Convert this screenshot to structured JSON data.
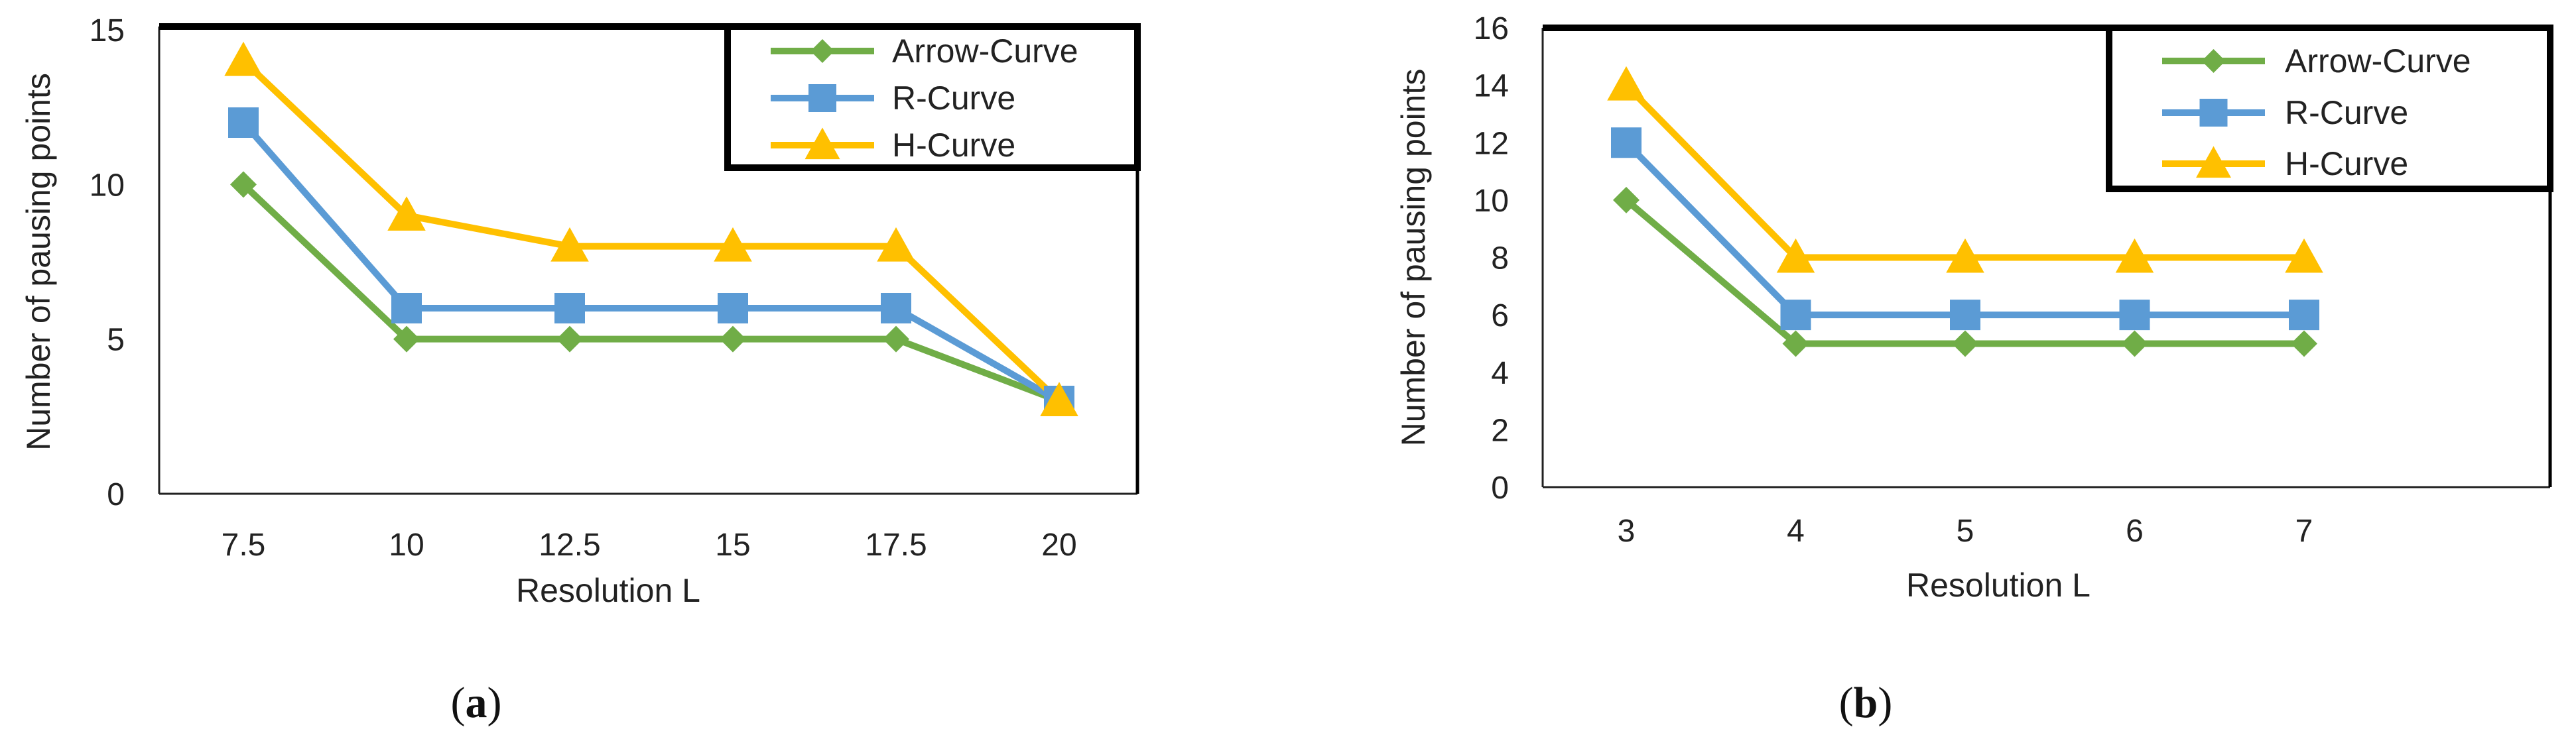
{
  "chart_data": [
    {
      "type": "line",
      "panel_label": "a",
      "xlabel": "Resolution L",
      "ylabel": "Number of pausing points",
      "categories": [
        "7.5",
        "10",
        "12.5",
        "15",
        "17.5",
        "20"
      ],
      "ylim": [
        0,
        15
      ],
      "yticks": [
        "0",
        "5",
        "10",
        "15"
      ],
      "grid": false,
      "legend_position": "top-right",
      "series": [
        {
          "name": "Arrow-Curve",
          "color": "#70ad47",
          "marker": "diamond",
          "values": [
            10,
            5,
            5,
            5,
            5,
            3
          ]
        },
        {
          "name": "R-Curve",
          "color": "#5b9bd5",
          "marker": "square",
          "values": [
            12,
            6,
            6,
            6,
            6,
            3
          ]
        },
        {
          "name": "H-Curve",
          "color": "#ffc000",
          "marker": "triangle",
          "values": [
            14,
            9,
            8,
            8,
            8,
            3
          ]
        }
      ]
    },
    {
      "type": "line",
      "panel_label": "b",
      "xlabel": "Resolution L",
      "ylabel": "Number of pausing points",
      "categories": [
        "3",
        "4",
        "5",
        "6",
        "7"
      ],
      "ylim": [
        0,
        16
      ],
      "yticks": [
        "0",
        "2",
        "4",
        "6",
        "8",
        "10",
        "12",
        "14",
        "16"
      ],
      "grid": false,
      "legend_position": "top-right",
      "series": [
        {
          "name": "Arrow-Curve",
          "color": "#70ad47",
          "marker": "diamond",
          "values": [
            10,
            5,
            5,
            5,
            5
          ]
        },
        {
          "name": "R-Curve",
          "color": "#5b9bd5",
          "marker": "square",
          "values": [
            12,
            6,
            6,
            6,
            6
          ]
        },
        {
          "name": "H-Curve",
          "color": "#ffc000",
          "marker": "triangle",
          "values": [
            14,
            8,
            8,
            8,
            8
          ]
        }
      ]
    }
  ]
}
